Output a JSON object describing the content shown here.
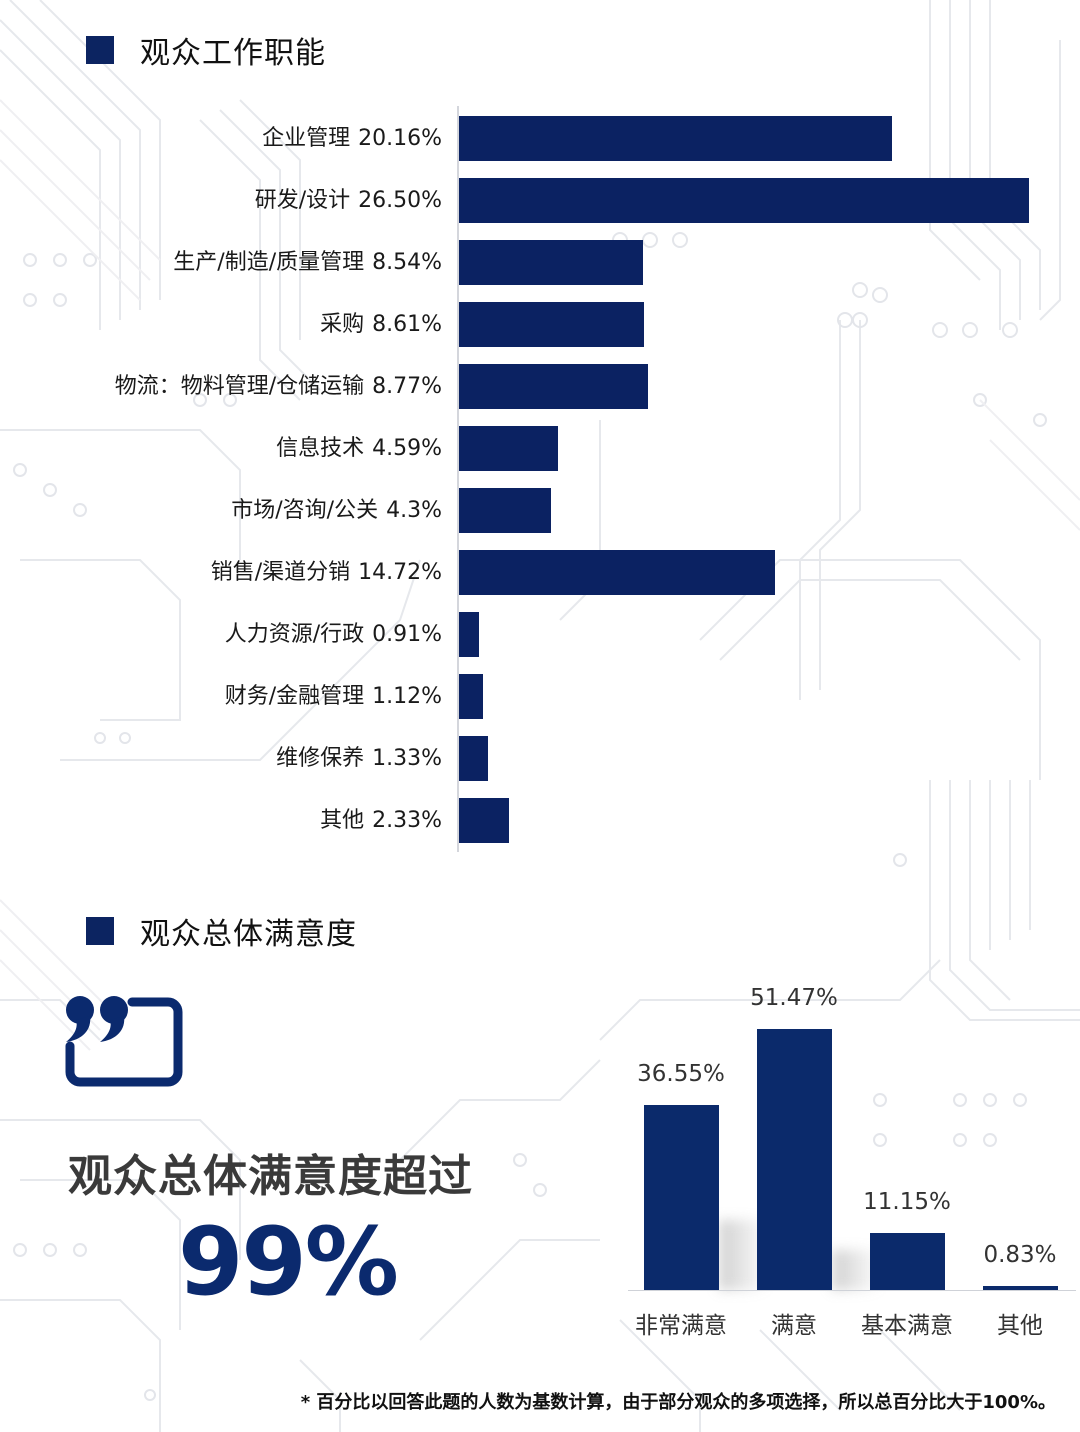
{
  "section1": {
    "title": "观众工作职能"
  },
  "section2": {
    "title": "观众总体满意度",
    "caption": "观众总体满意度超过",
    "headline_value": "99%"
  },
  "footnote": "* 百分比以回答此题的人数为基数计算，由于部分观众的多项选择，所以总百分比大于100%。",
  "colors": {
    "bar": "#0b2262",
    "accent": "#0c2461",
    "headline": "#0b2a6e"
  },
  "icons": {
    "section_marker": "square-icon",
    "quote": "quote-bubble-icon"
  },
  "chart_data": [
    {
      "type": "bar",
      "orientation": "horizontal",
      "title": "观众工作职能",
      "categories": [
        "企业管理",
        "研发/设计",
        "生产/制造/质量管理",
        "采购",
        "物流：物料管理/仓储运输",
        "信息技术",
        "市场/咨询/公关",
        "销售/渠道分销",
        "人力资源/行政",
        "财务/金融管理",
        "维修保养",
        "其他"
      ],
      "values": [
        20.16,
        26.5,
        8.54,
        8.61,
        8.77,
        4.59,
        4.3,
        14.72,
        0.91,
        1.12,
        1.33,
        2.33
      ],
      "value_labels": [
        "20.16%",
        "26.50%",
        "8.54%",
        "8.61%",
        "8.77%",
        "4.59%",
        "4.3%",
        "14.72%",
        "0.91%",
        "1.12%",
        "1.33%",
        "2.33%"
      ],
      "xlabel": "",
      "ylabel": "",
      "unit": "%",
      "grid": false,
      "legend": null
    },
    {
      "type": "bar",
      "orientation": "vertical",
      "title": "观众总体满意度",
      "categories": [
        "非常满意",
        "满意",
        "基本满意",
        "其他"
      ],
      "values": [
        36.55,
        51.47,
        11.15,
        0.83
      ],
      "value_labels": [
        "36.55%",
        "51.47%",
        "11.15%",
        "0.83%"
      ],
      "xlabel": "",
      "ylabel": "",
      "unit": "%",
      "grid": false,
      "legend": null
    }
  ]
}
